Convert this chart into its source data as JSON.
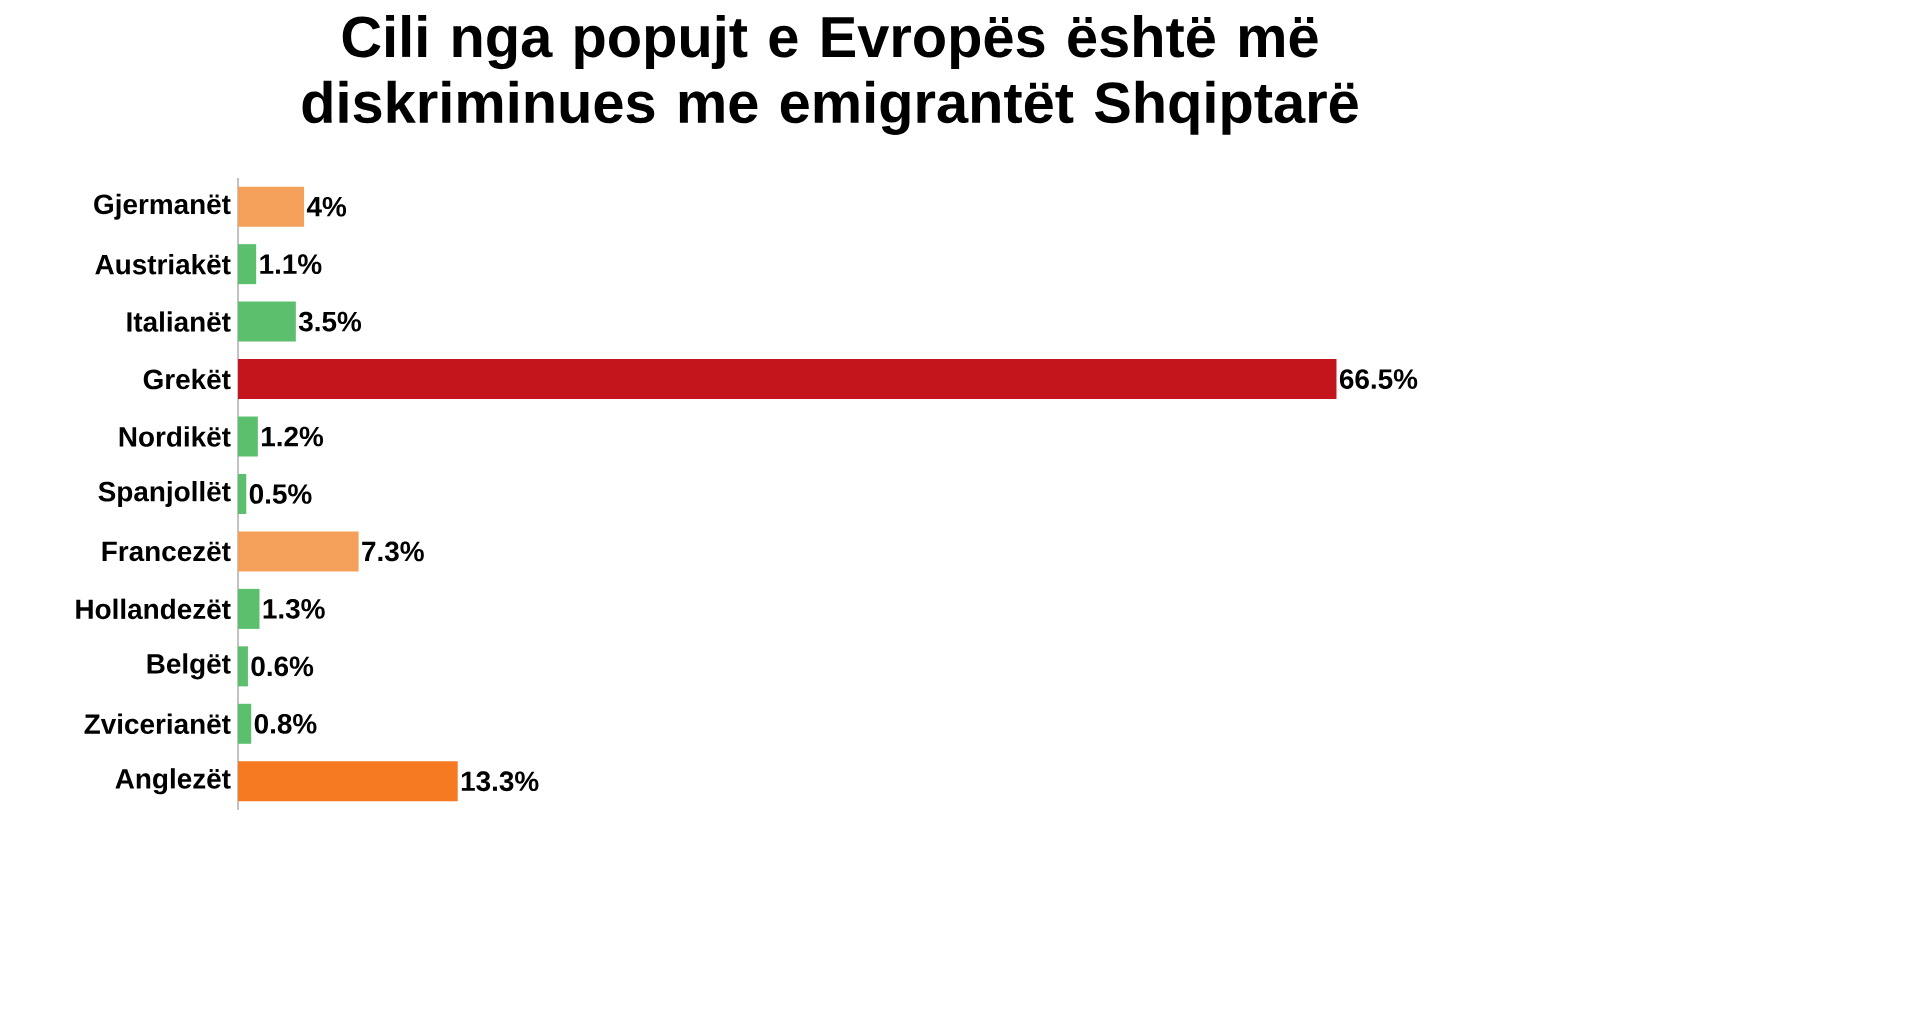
{
  "chart_data": {
    "type": "bar",
    "orientation": "horizontal",
    "title": "Cili nga popujt e Evropës është më diskriminues me emigrantët Shqiptarë",
    "categories": [
      "Gjermanët",
      "Austriakët",
      "Italianët",
      "Grekët",
      "Nordikët",
      "Spanjollët",
      "Francezët",
      "Hollandezët",
      "Belgët",
      "Zvicerianët",
      "Anglezët"
    ],
    "values": [
      4,
      1.1,
      3.5,
      66.5,
      1.2,
      0.5,
      7.3,
      1.3,
      0.6,
      0.8,
      13.3
    ],
    "colors": [
      "#f5a05a",
      "#5cbf6e",
      "#5cbf6e",
      "#c4141c",
      "#5cbf6e",
      "#5cbf6e",
      "#f5a05a",
      "#5cbf6e",
      "#5cbf6e",
      "#5cbf6e",
      "#f57a22"
    ],
    "value_labels": [
      "4%",
      "1.1%",
      "3.5%",
      "66.5%",
      "1.2%",
      "0.5%",
      "7.3%",
      "1.3%",
      "0.6%",
      "0.8%",
      "13.3%"
    ],
    "data_labels": false
  }
}
